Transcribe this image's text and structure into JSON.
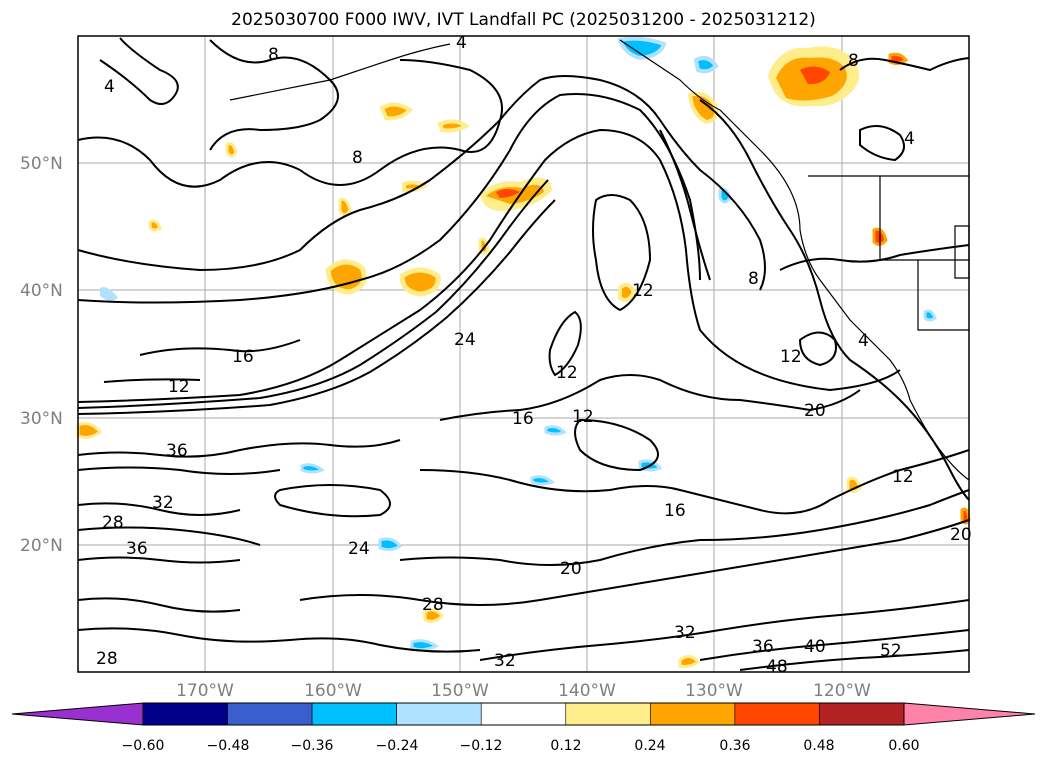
{
  "title": "2025030700 F000 IWV, IVT Landfall PC (2025031200 - 2025031212)",
  "map": {
    "lat_labels": [
      "50°N",
      "40°N",
      "30°N",
      "20°N"
    ],
    "lon_labels": [
      "170°W",
      "160°W",
      "150°W",
      "140°W",
      "130°W",
      "120°W"
    ],
    "contour_labels": [
      "4",
      "8",
      "8",
      "4",
      "12",
      "16",
      "12",
      "16",
      "12",
      "20",
      "24",
      "28",
      "32",
      "36",
      "12",
      "16",
      "20",
      "24",
      "28",
      "32",
      "36",
      "40",
      "48",
      "52",
      "12",
      "20",
      "28",
      "32",
      "36",
      "12",
      "8",
      "8",
      "4",
      "4"
    ]
  },
  "colorbar": {
    "ticks": [
      "−0.60",
      "−0.48",
      "−0.36",
      "−0.24",
      "−0.12",
      "0.12",
      "0.24",
      "0.36",
      "0.48",
      "0.60"
    ],
    "colors": {
      "under": "#9b30d0",
      "bins": [
        "#00008b",
        "#3a5fcd",
        "#00bfff",
        "#b0e2ff",
        "#ffffff",
        "#ffec8b",
        "#ffa500",
        "#ff4500",
        "#b22222"
      ],
      "over": "#ff82ab"
    }
  },
  "colors": {
    "contour": "#000000",
    "grid": "#aaaaaa",
    "warm_fill": "#ffa500",
    "warm_core": "#ff4500",
    "warm_edge": "#ffec8b",
    "cool_fill": "#00bfff",
    "cool_edge": "#b0e2ff"
  }
}
